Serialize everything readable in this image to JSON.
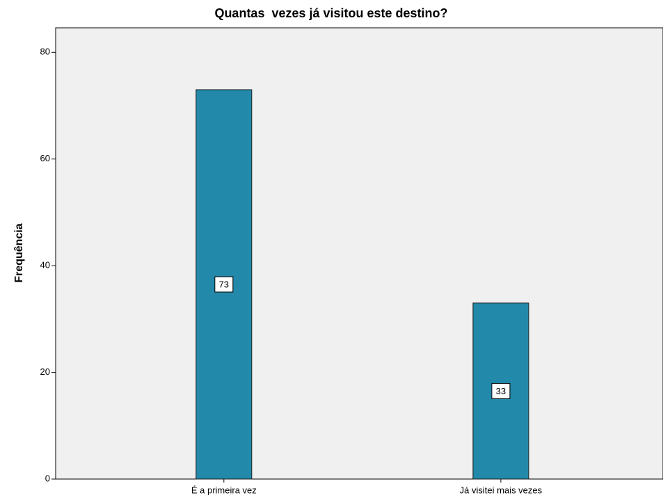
{
  "chart_data": {
    "type": "bar",
    "title": "Quantas  vezes já visitou este destino?",
    "y_label": "Frequência",
    "categories": [
      "É a primeira vez",
      "Já visitei mais vezes"
    ],
    "values": [
      73,
      33
    ],
    "color": "#2389aa",
    "ylim": [
      0,
      84.6
    ],
    "yticks": [
      0,
      20,
      40,
      60,
      80
    ],
    "grid": false
  }
}
